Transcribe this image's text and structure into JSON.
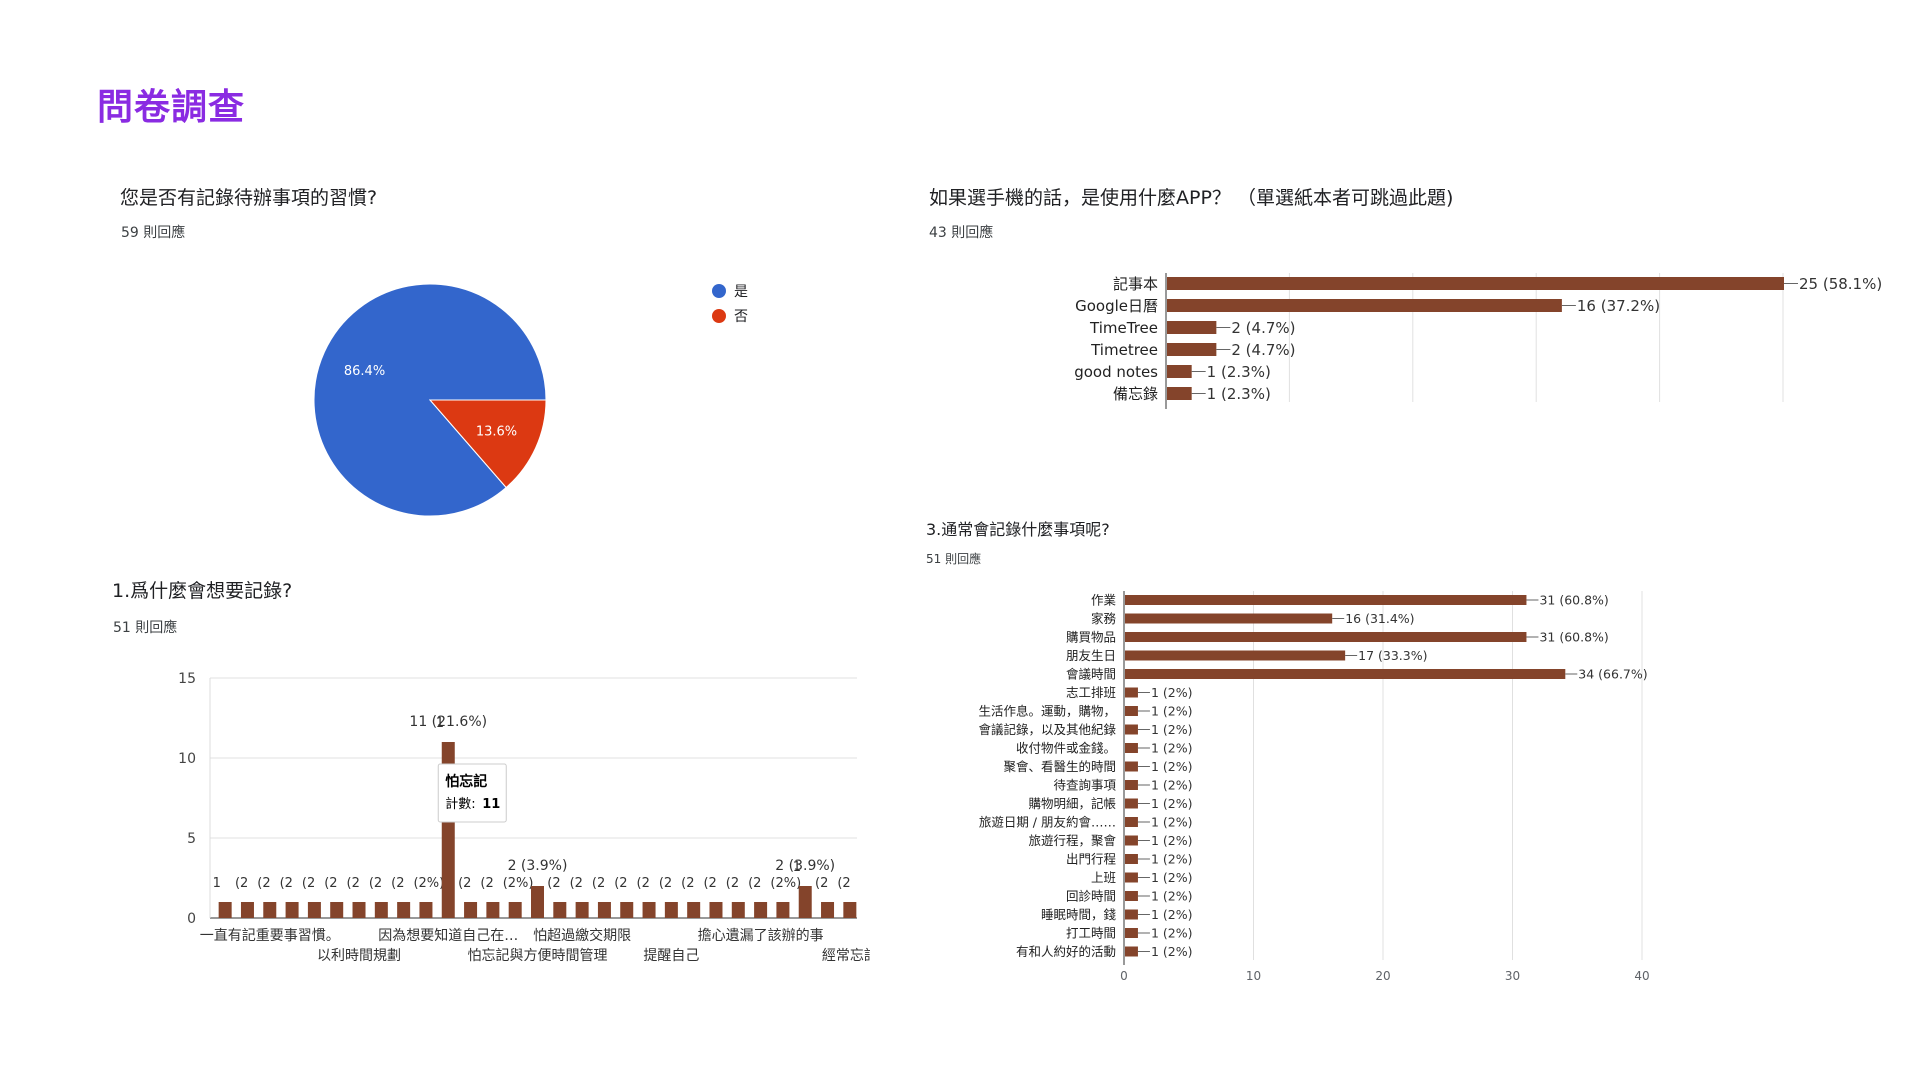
{
  "page": {
    "title": "問卷調查"
  },
  "chart_data": [
    {
      "type": "pie",
      "title": "您是否有記錄待辦事項的習慣?",
      "subtitle": "59 則回應",
      "legend_position": "right",
      "slices": [
        {
          "label": "是",
          "percent": 86.4,
          "color": "#3366cc",
          "display": "86.4%"
        },
        {
          "label": "否",
          "percent": 13.6,
          "color": "#dc3912",
          "display": "13.6%"
        }
      ]
    },
    {
      "type": "bar",
      "orientation": "horizontal",
      "title": "如果選手機的話，是使用什麼APP？ （單選紙本者可跳過此題)",
      "subtitle": "43 則回應",
      "color": "#84442b",
      "xlim": [
        0,
        25
      ],
      "grid": true,
      "categories": [
        "記事本",
        "Google日曆",
        "TimeTree",
        "Timetree",
        "good notes",
        "備忘錄"
      ],
      "values": [
        25,
        16,
        2,
        2,
        1,
        1
      ],
      "labels": [
        "25 (58.1%)",
        "16 (37.2%)",
        "2 (4.7%)",
        "2 (4.7%)",
        "1 (2.3%)",
        "1 (2.3%)"
      ]
    },
    {
      "type": "bar",
      "orientation": "vertical",
      "title": "1.爲什麼會想要記錄?",
      "subtitle": "51 則回應",
      "color": "#84442b",
      "ylim": [
        0,
        15
      ],
      "yticks": [
        "15",
        "10",
        "5",
        "0"
      ],
      "grid": true,
      "values": [
        1,
        1,
        1,
        1,
        1,
        1,
        1,
        1,
        1,
        1,
        11,
        1,
        1,
        1,
        2,
        1,
        1,
        1,
        1,
        1,
        1,
        1,
        1,
        1,
        1,
        1,
        2,
        1,
        1
      ],
      "value_labels": [
        "1",
        "(2",
        "(2",
        "(2",
        "(2",
        "(2",
        "(2",
        "(2",
        "(2",
        "(2%)",
        "1",
        "(2",
        "(2",
        "(2%)",
        "",
        "(2",
        "(2",
        "(2",
        "(2",
        "(2",
        "(2",
        "(2",
        "(2",
        "(2",
        "(2",
        "(2%)",
        "1",
        "(2",
        "(2"
      ],
      "highlight_labels": [
        {
          "index": 10,
          "text": "11 (21.6%)"
        },
        {
          "index": 14,
          "text": "2 (3.9%)"
        },
        {
          "index": 26,
          "text": "2 (3.9%)"
        }
      ],
      "x_tick_labels_row1": [
        {
          "index": 2,
          "text": "一直有記重要事習慣。"
        },
        {
          "index": 10,
          "text": "因為想要知道自己在…"
        },
        {
          "index": 16,
          "text": "怕超過繳交期限"
        },
        {
          "index": 24,
          "text": "擔心遺漏了該辦的事"
        }
      ],
      "x_tick_labels_row2": [
        {
          "index": 6,
          "text": "以利時間規劃"
        },
        {
          "index": 14,
          "text": "怕忘記與方便時間管理"
        },
        {
          "index": 20,
          "text": "提醒自己"
        },
        {
          "index": 28,
          "text": "經常忘記"
        }
      ],
      "tooltip": {
        "title": "怕忘記",
        "label": "計數:",
        "value": "11"
      }
    },
    {
      "type": "bar",
      "orientation": "horizontal",
      "title": "3.通常會記錄什麼事項呢?",
      "subtitle": "51 則回應",
      "color": "#84442b",
      "xlim": [
        0,
        40
      ],
      "xticks": [
        "0",
        "10",
        "20",
        "30",
        "40"
      ],
      "grid": true,
      "categories": [
        "作業",
        "家務",
        "購買物品",
        "朋友生日",
        "會議時間",
        "志工排班",
        "生活作息。運動，購物，",
        "會議記錄，以及其他紀錄",
        "收付物件或金錢。",
        "聚會、看醫生的時間",
        "待查詢事項",
        "購物明細，記帳",
        "旅遊日期 / 朋友約會……",
        "旅遊行程，聚會",
        "出門行程",
        "上班",
        "回診時間",
        "睡眠時間，錢",
        "打工時間",
        "有和人約好的活動"
      ],
      "values": [
        31,
        16,
        31,
        17,
        34,
        1,
        1,
        1,
        1,
        1,
        1,
        1,
        1,
        1,
        1,
        1,
        1,
        1,
        1,
        1
      ],
      "labels": [
        "31 (60.8%)",
        "16 (31.4%)",
        "31 (60.8%)",
        "17 (33.3%)",
        "34 (66.7%)",
        "1 (2%)",
        "1 (2%)",
        "1 (2%)",
        "1 (2%)",
        "1 (2%)",
        "1 (2%)",
        "1 (2%)",
        "1 (2%)",
        "1 (2%)",
        "1 (2%)",
        "1 (2%)",
        "1 (2%)",
        "1 (2%)",
        "1 (2%)",
        "1 (2%)"
      ]
    }
  ]
}
